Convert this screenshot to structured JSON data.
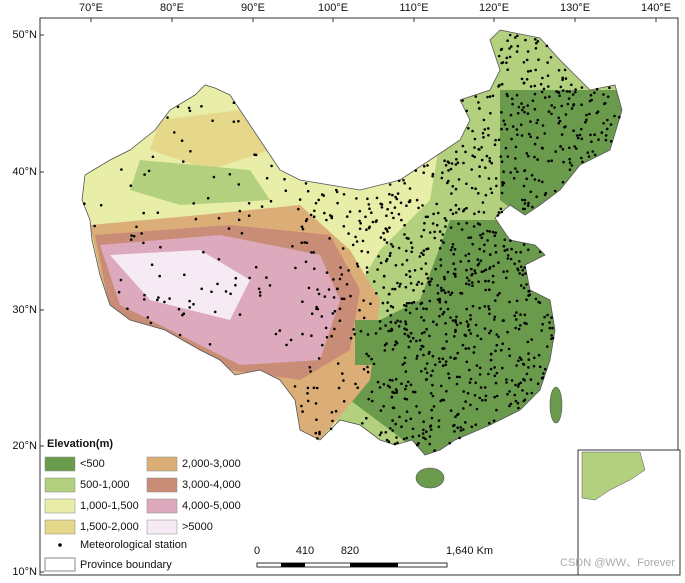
{
  "lon_labels": [
    "70°E",
    "80°E",
    "90°E",
    "100°E",
    "110°E",
    "120°E",
    "130°E",
    "140°E"
  ],
  "lat_labels": [
    "50°N",
    "40°N",
    "30°N",
    "20°N",
    "10°N"
  ],
  "legend": {
    "title": "Elevation(m)",
    "items": [
      {
        "label": "<500",
        "color": "#6a9a4c"
      },
      {
        "label": "500-1,000",
        "color": "#b3d07e"
      },
      {
        "label": "1,000-1,500",
        "color": "#e8eea8"
      },
      {
        "label": "1,500-2,000",
        "color": "#e6d88a"
      },
      {
        "label": "2,000-3,000",
        "color": "#dbae78"
      },
      {
        "label": "3,000-4,000",
        "color": "#c98c76"
      },
      {
        "label": "4,000-5,000",
        "color": "#dcaabc"
      },
      {
        "label": ">5000",
        "color": "#f6eaf4"
      }
    ],
    "station": "Meteorological station",
    "boundary": "Province boundary"
  },
  "scale_bar": {
    "labels": [
      "0",
      "410",
      "820",
      "1,640 Km"
    ]
  },
  "watermark": "CSDN @WW、Forever"
}
